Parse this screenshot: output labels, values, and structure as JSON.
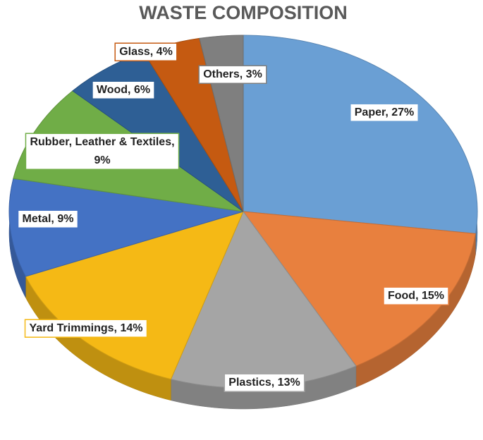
{
  "chart_data": {
    "type": "pie",
    "title": "WASTE COMPOSITION",
    "categories": [
      "Paper, 27%",
      "Food, 15%",
      "Plastics, 13%",
      "Yard Trimmings, 14%",
      "Metal, 9%",
      "Rubber, Leather & Textiles, 9%",
      "Wood, 6%",
      "Glass, 4%",
      "Others, 3%"
    ],
    "values": [
      27,
      15,
      13,
      14,
      9,
      9,
      6,
      4,
      3
    ],
    "colors": [
      "#6a9fd4",
      "#e8803e",
      "#a5a5a5",
      "#f5b915",
      "#4472c4",
      "#70ad47",
      "#2e5f95",
      "#c55a11",
      "#7f7f7f"
    ]
  }
}
